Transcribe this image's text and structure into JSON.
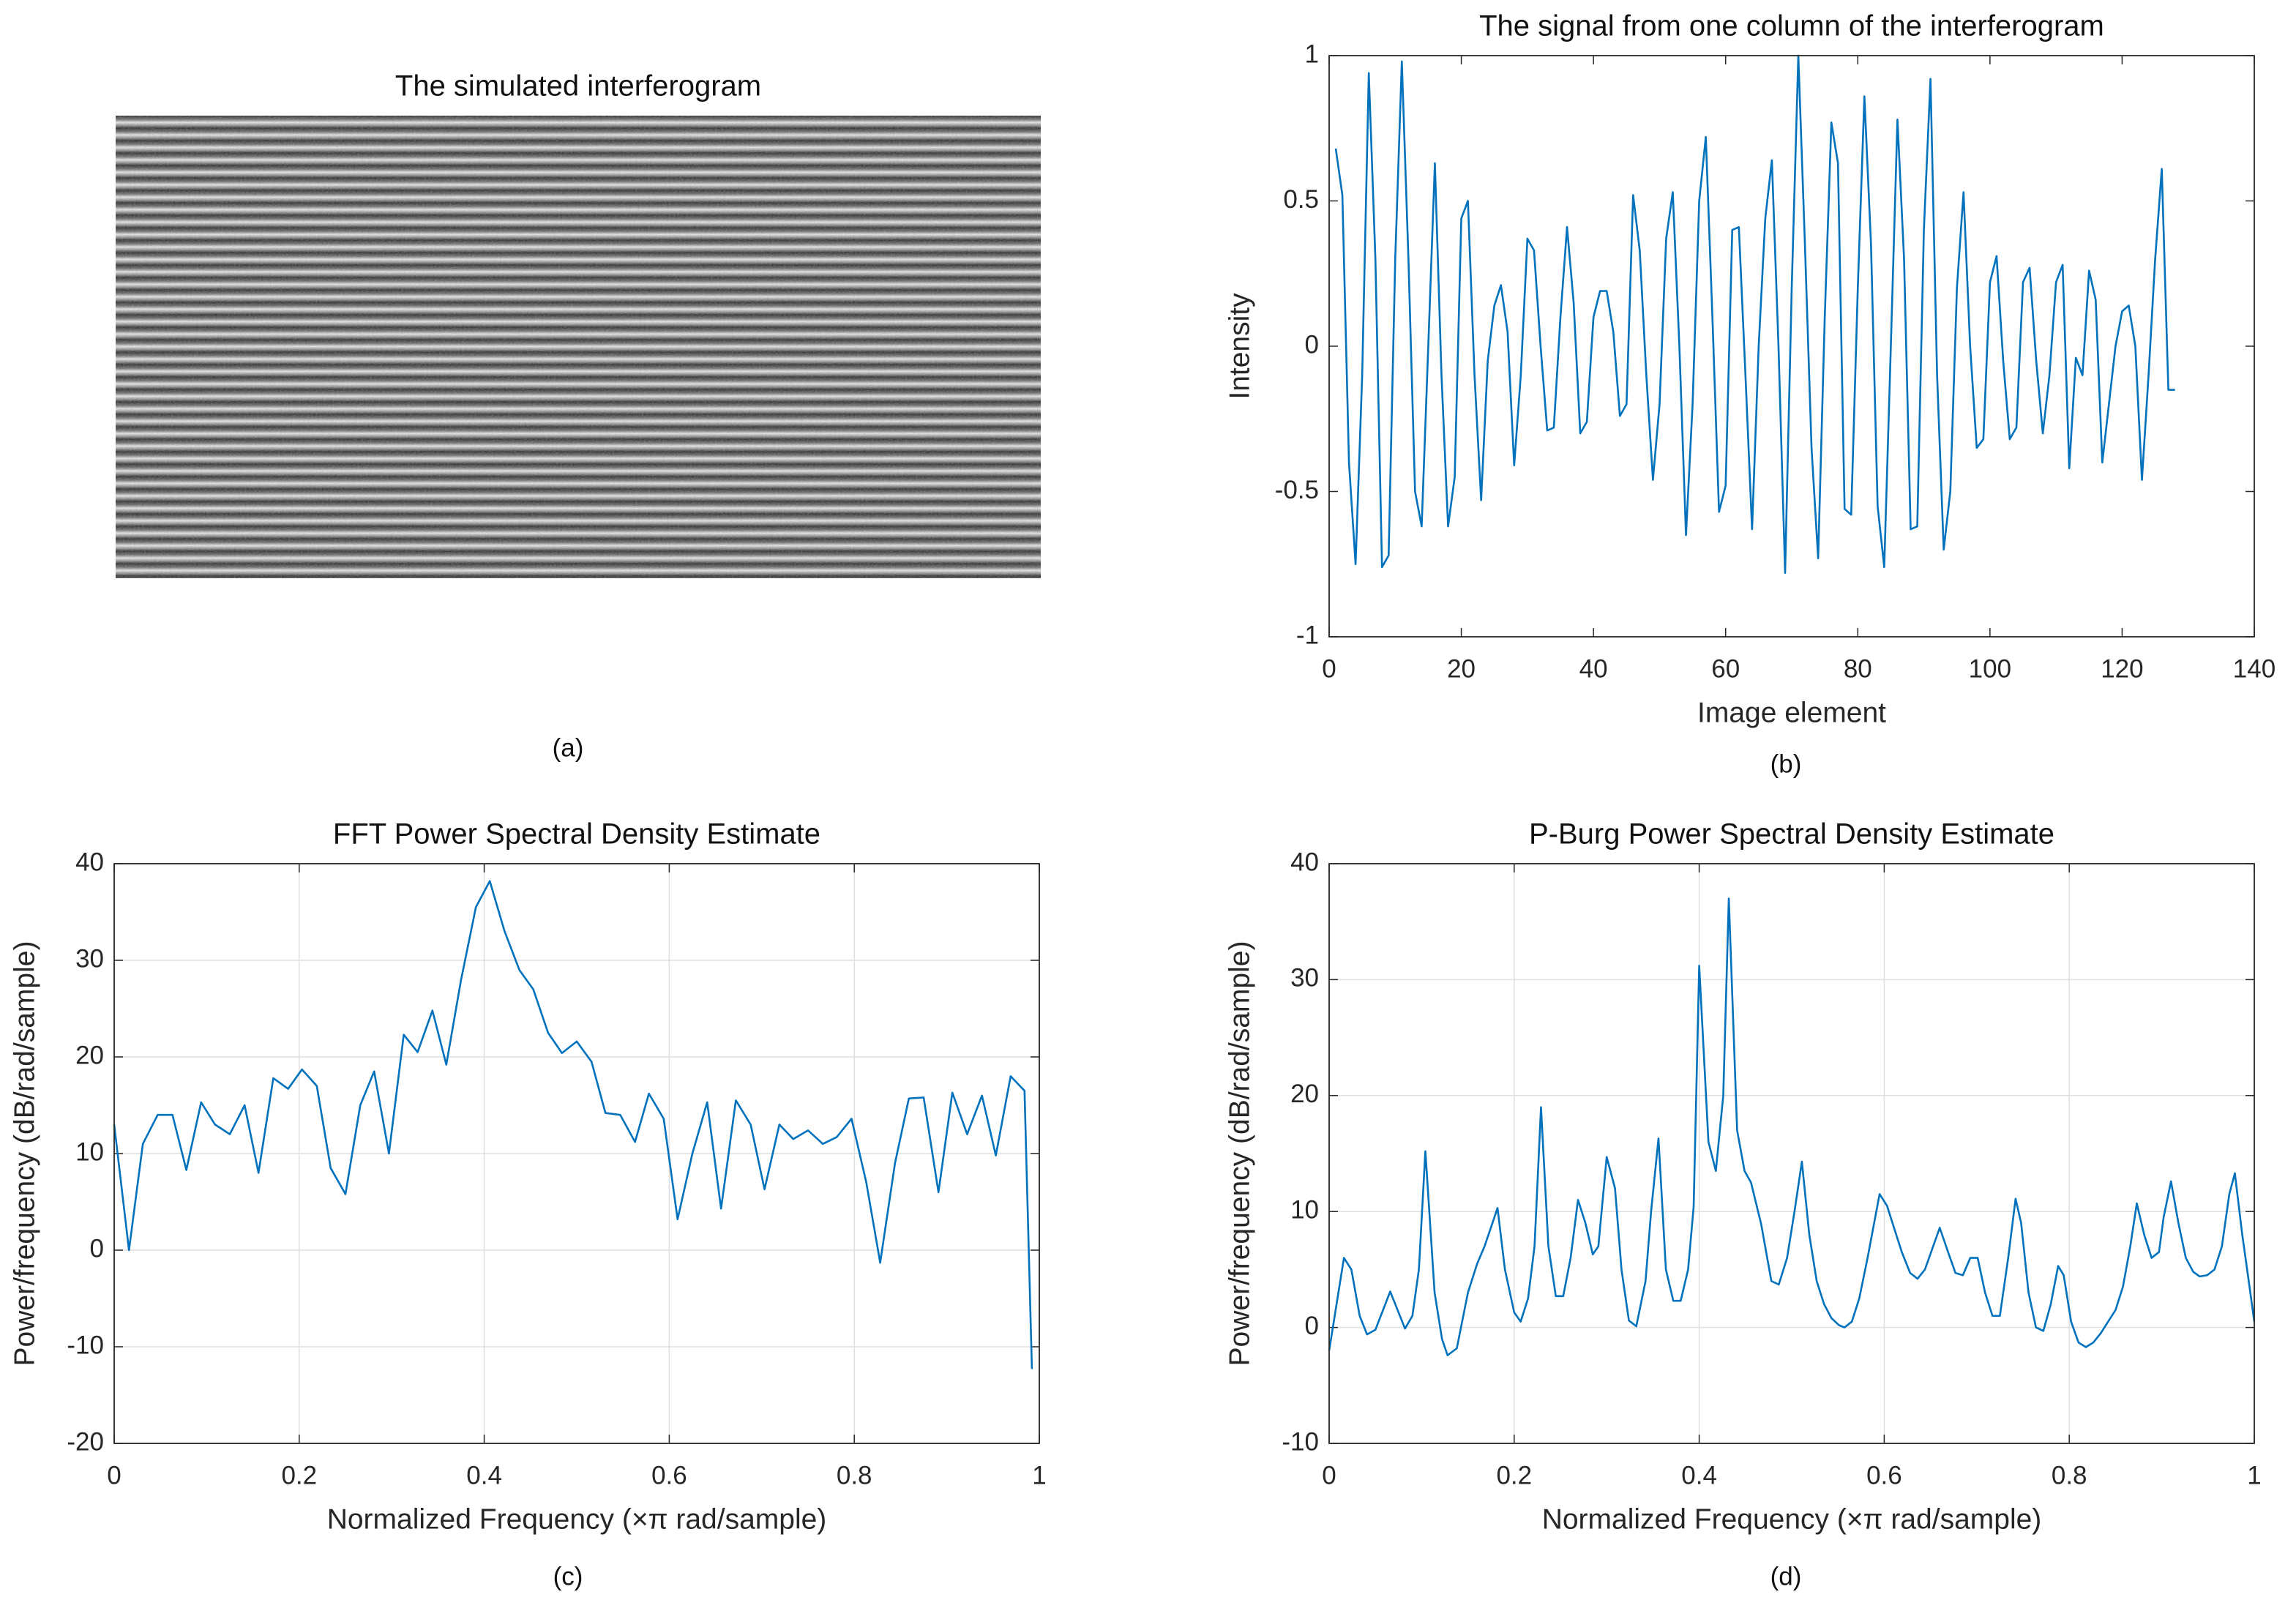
{
  "chart_data": [
    {
      "type": "image",
      "title": "The simulated interferogram",
      "caption": "(a)"
    },
    {
      "type": "line",
      "title": "The signal from one column of the interferogram",
      "caption": "(b)",
      "xlabel": "Image element",
      "ylabel": "Intensity",
      "grid": false,
      "xlim": [
        0,
        140
      ],
      "ylim": [
        -1,
        1
      ],
      "xticks": [
        0,
        20,
        40,
        60,
        80,
        100,
        120,
        140
      ],
      "yticks": [
        -1,
        -0.5,
        0,
        0.5,
        1
      ],
      "x": [
        1,
        2,
        3,
        4,
        5,
        6,
        7,
        8,
        9,
        10,
        11,
        12,
        13,
        14,
        15,
        16,
        17,
        18,
        19,
        20,
        21,
        22,
        23,
        24,
        25,
        26,
        27,
        28,
        29,
        30,
        31,
        32,
        33,
        34,
        35,
        36,
        37,
        38,
        39,
        40,
        41,
        42,
        43,
        44,
        45,
        46,
        47,
        48,
        49,
        50,
        51,
        52,
        53,
        54,
        55,
        56,
        57,
        58,
        59,
        60,
        61,
        62,
        63,
        64,
        65,
        66,
        67,
        68,
        69,
        70,
        71,
        72,
        73,
        74,
        75,
        76,
        77,
        78,
        79,
        80,
        81,
        82,
        83,
        84,
        85,
        86,
        87,
        88,
        89,
        90,
        91,
        92,
        93,
        94,
        95,
        96,
        97,
        98,
        99,
        100,
        101,
        102,
        103,
        104,
        105,
        106,
        107,
        108,
        109,
        110,
        111,
        112,
        113,
        114,
        115,
        116,
        117,
        118,
        119,
        120,
        121,
        122,
        123,
        124,
        125,
        126,
        127,
        128
      ],
      "series": [
        {
          "color": "#0072bd",
          "values": [
            0.68,
            0.52,
            -0.4,
            -0.75,
            -0.1,
            0.94,
            0.3,
            -0.76,
            -0.72,
            0.3,
            0.98,
            0.3,
            -0.5,
            -0.62,
            0,
            0.63,
            -0.1,
            -0.62,
            -0.45,
            0.44,
            0.5,
            -0.1,
            -0.53,
            -0.05,
            0.14,
            0.21,
            0.05,
            -0.41,
            -0.1,
            0.37,
            0.33,
            0,
            -0.29,
            -0.28,
            0.1,
            0.41,
            0.15,
            -0.3,
            -0.26,
            0.1,
            0.19,
            0.19,
            0.05,
            -0.24,
            -0.2,
            0.52,
            0.33,
            -0.1,
            -0.46,
            -0.2,
            0.37,
            0.53,
            0,
            -0.65,
            -0.2,
            0.5,
            0.72,
            0.1,
            -0.57,
            -0.48,
            0.4,
            0.41,
            -0.1,
            -0.63,
            0,
            0.44,
            0.64,
            0,
            -0.78,
            0.2,
            1,
            0.35,
            -0.35,
            -0.73,
            0.1,
            0.77,
            0.63,
            -0.56,
            -0.58,
            0.2,
            0.86,
            0.35,
            -0.55,
            -0.76,
            0,
            0.78,
            0.3,
            -0.63,
            -0.62,
            0.4,
            0.92,
            -0.1,
            -0.7,
            -0.5,
            0.2,
            0.53,
            0,
            -0.35,
            -0.32,
            0.22,
            0.31,
            -0.05,
            -0.32,
            -0.28,
            0.22,
            0.27,
            -0.05,
            -0.3,
            -0.1,
            0.22,
            0.28,
            -0.42,
            -0.04,
            -0.1,
            0.26,
            0.16,
            -0.4,
            -0.2,
            0,
            0.12,
            0.14,
            0,
            -0.46,
            -0.1,
            0.3,
            0.61,
            -0.15,
            -0.15
          ]
        }
      ]
    },
    {
      "type": "line",
      "title": "FFT Power Spectral Density Estimate",
      "caption": "(c)",
      "xlabel": "Normalized Frequency (×π rad/sample)",
      "ylabel": "Power/frequency (dB/rad/sample)",
      "grid": true,
      "xlim": [
        0,
        1
      ],
      "ylim": [
        -20,
        40
      ],
      "xticks": [
        0,
        0.2,
        0.4,
        0.6,
        0.8,
        1
      ],
      "yticks": [
        -20,
        -10,
        0,
        10,
        20,
        30,
        40
      ],
      "x": [
        0,
        0.016,
        0.031,
        0.047,
        0.063,
        0.078,
        0.094,
        0.109,
        0.125,
        0.141,
        0.156,
        0.172,
        0.188,
        0.203,
        0.219,
        0.234,
        0.25,
        0.266,
        0.281,
        0.297,
        0.313,
        0.328,
        0.344,
        0.359,
        0.375,
        0.391,
        0.406,
        0.422,
        0.438,
        0.453,
        0.469,
        0.484,
        0.5,
        0.516,
        0.531,
        0.547,
        0.563,
        0.578,
        0.594,
        0.609,
        0.625,
        0.641,
        0.656,
        0.672,
        0.688,
        0.703,
        0.719,
        0.734,
        0.75,
        0.766,
        0.781,
        0.797,
        0.813,
        0.828,
        0.844,
        0.859,
        0.875,
        0.891,
        0.906,
        0.922,
        0.938,
        0.953,
        0.969,
        0.984,
        0.992
      ],
      "series": [
        {
          "color": "#0072bd",
          "values": [
            13,
            0,
            11,
            14,
            14,
            8.3,
            15.3,
            13,
            12,
            15,
            8,
            17.8,
            16.7,
            18.7,
            17,
            8.5,
            5.8,
            15,
            18.5,
            10,
            22.3,
            20.5,
            24.8,
            19.2,
            28,
            35.5,
            38.2,
            33,
            29,
            27,
            22.5,
            20.4,
            21.6,
            19.5,
            14.2,
            14,
            11.2,
            16.2,
            13.6,
            3.2,
            10,
            15.3,
            4.3,
            15.5,
            13,
            6.3,
            13,
            11.5,
            12.4,
            11,
            11.7,
            13.6,
            7,
            -1.3,
            9,
            15.7,
            15.8,
            6,
            16.3,
            12,
            16,
            9.8,
            18,
            16.5,
            -12.3
          ]
        }
      ]
    },
    {
      "type": "line",
      "title": "P-Burg Power Spectral Density Estimate",
      "caption": "(d)",
      "xlabel": "Normalized Frequency  (×π rad/sample)",
      "ylabel": "Power/frequency (dB/rad/sample)",
      "grid": true,
      "xlim": [
        0,
        1
      ],
      "ylim": [
        -10,
        40
      ],
      "xticks": [
        0,
        0.2,
        0.4,
        0.6,
        0.8,
        1
      ],
      "yticks": [
        -10,
        0,
        10,
        20,
        30,
        40
      ],
      "x": [
        0,
        0.016,
        0.024,
        0.033,
        0.041,
        0.05,
        0.066,
        0.082,
        0.09,
        0.097,
        0.104,
        0.114,
        0.122,
        0.128,
        0.138,
        0.15,
        0.16,
        0.168,
        0.182,
        0.19,
        0.2,
        0.207,
        0.215,
        0.222,
        0.229,
        0.237,
        0.245,
        0.253,
        0.261,
        0.269,
        0.277,
        0.285,
        0.291,
        0.3,
        0.309,
        0.316,
        0.324,
        0.332,
        0.342,
        0.348,
        0.356,
        0.364,
        0.372,
        0.38,
        0.388,
        0.394,
        0.4,
        0.41,
        0.418,
        0.426,
        0.432,
        0.441,
        0.449,
        0.456,
        0.467,
        0.478,
        0.486,
        0.495,
        0.503,
        0.511,
        0.519,
        0.527,
        0.535,
        0.543,
        0.551,
        0.557,
        0.565,
        0.573,
        0.582,
        0.595,
        0.603,
        0.611,
        0.619,
        0.628,
        0.636,
        0.644,
        0.66,
        0.669,
        0.677,
        0.685,
        0.693,
        0.701,
        0.709,
        0.717,
        0.725,
        0.734,
        0.742,
        0.748,
        0.756,
        0.764,
        0.772,
        0.78,
        0.788,
        0.794,
        0.802,
        0.81,
        0.818,
        0.826,
        0.834,
        0.842,
        0.85,
        0.858,
        0.866,
        0.873,
        0.881,
        0.889,
        0.897,
        0.902,
        0.91,
        0.918,
        0.926,
        0.934,
        0.941,
        0.949,
        0.957,
        0.965,
        0.973,
        0.979,
        0.987,
        0.994,
        1
      ],
      "series": [
        {
          "color": "#0072bd",
          "values": [
            -2,
            6,
            5,
            1,
            -0.6,
            -0.2,
            3.1,
            -0.1,
            1,
            5,
            15.2,
            3,
            -1,
            -2.4,
            -1.8,
            3,
            5.5,
            7,
            10.3,
            5,
            1.3,
            0.5,
            2.5,
            7,
            19,
            7,
            2.7,
            2.7,
            6,
            11,
            9,
            6.3,
            7,
            14.7,
            12,
            5,
            0.6,
            0.1,
            4,
            10,
            16.3,
            5,
            2.3,
            2.3,
            5,
            10.4,
            31.2,
            16,
            13.5,
            20,
            37,
            17,
            13.5,
            12.5,
            8.9,
            4,
            3.7,
            6,
            10,
            14.3,
            8,
            4,
            2,
            0.8,
            0.2,
            0,
            0.5,
            2.5,
            6,
            11.5,
            10.5,
            8.5,
            6.5,
            4.7,
            4.2,
            5,
            8.6,
            6.5,
            4.7,
            4.5,
            6,
            6,
            3,
            1,
            1,
            6,
            11.1,
            9,
            3,
            0,
            -0.3,
            2,
            5.3,
            4.5,
            0.5,
            -1.3,
            -1.7,
            -1.3,
            -0.5,
            0.5,
            1.5,
            3.5,
            7,
            10.7,
            8,
            6,
            6.5,
            9.5,
            12.6,
            9,
            6,
            4.8,
            4.4,
            4.5,
            5,
            7,
            11.5,
            13.3,
            8,
            4,
            0.5
          ]
        }
      ]
    }
  ]
}
